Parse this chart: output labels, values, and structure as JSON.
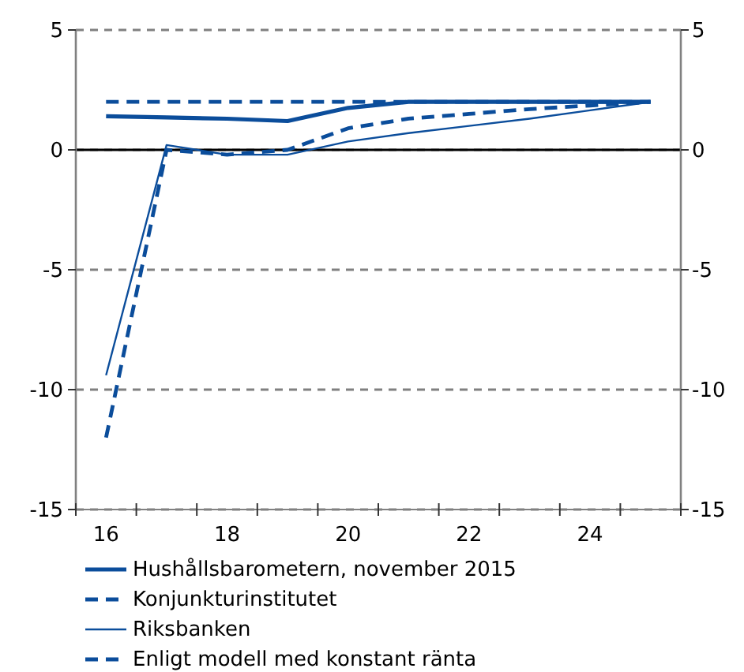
{
  "chart_data": {
    "type": "line",
    "x": [
      16,
      17,
      18,
      19,
      20,
      21,
      22,
      23,
      24,
      25
    ],
    "xlim": [
      15.5,
      25.5
    ],
    "xticks": [
      {
        "value": 15.5,
        "label": null
      },
      {
        "value": 16,
        "label": "16"
      },
      {
        "value": 16.5,
        "label": null
      },
      {
        "value": 17.5,
        "label": null
      },
      {
        "value": 18,
        "label": "18"
      },
      {
        "value": 18.5,
        "label": null
      },
      {
        "value": 19.5,
        "label": null
      },
      {
        "value": 20,
        "label": "20"
      },
      {
        "value": 20.5,
        "label": null
      },
      {
        "value": 21.5,
        "label": null
      },
      {
        "value": 22,
        "label": "22"
      },
      {
        "value": 22.5,
        "label": null
      },
      {
        "value": 23.5,
        "label": null
      },
      {
        "value": 24,
        "label": "24"
      },
      {
        "value": 24.5,
        "label": null
      },
      {
        "value": 25.5,
        "label": null
      }
    ],
    "ylim": [
      -15,
      5
    ],
    "yticks": [
      -15,
      -10,
      -5,
      0,
      5
    ],
    "y2lim": [
      -15,
      5
    ],
    "y2ticks": [
      -15,
      -10,
      -5,
      0,
      5
    ],
    "grid": "y",
    "legend": "bottom",
    "ref_lines": [
      {
        "axis": "y",
        "value": 0,
        "color": "#000000",
        "line_style": "solid"
      }
    ],
    "series": [
      {
        "name": "Hushållsbarometern, november 2015",
        "color": "#0b4d9b",
        "line_style": "solid",
        "values": [
          1.4,
          1.35,
          1.3,
          1.2,
          1.75,
          2.0,
          2.0,
          2.0,
          2.0,
          2.0
        ]
      },
      {
        "name": "Konjunkturinstitutet",
        "color": "#0b4d9b",
        "line_style": "dashed",
        "values": [
          2.0,
          2.0,
          2.0,
          2.0,
          2.0,
          2.0,
          2.0,
          2.0,
          2.0,
          2.0
        ]
      },
      {
        "name": "Riksbanken",
        "color": "#0b4d9b",
        "line_style": "solid",
        "values": [
          -9.4,
          0.2,
          -0.2,
          -0.2,
          0.35,
          0.7,
          1.0,
          1.3,
          1.65,
          2.0
        ]
      },
      {
        "name": "Enligt modell med konstant ränta",
        "color": "#0b4d9b",
        "line_style": "dashed",
        "values": [
          -12,
          0.0,
          -0.2,
          0.0,
          0.9,
          1.3,
          1.5,
          1.7,
          1.85,
          2.0
        ]
      }
    ]
  }
}
